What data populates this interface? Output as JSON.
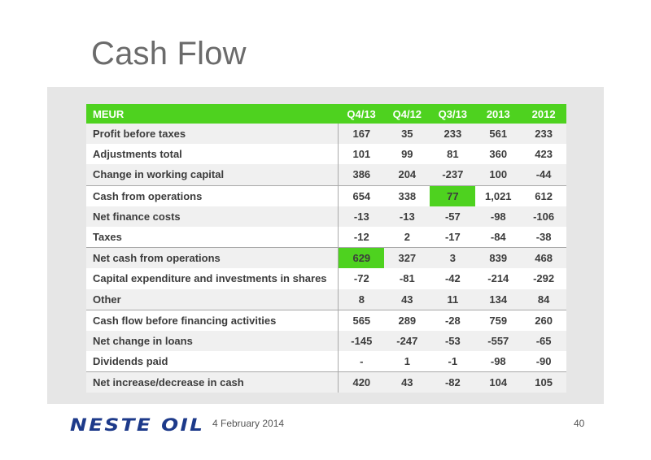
{
  "slide": {
    "title": "Cash Flow",
    "date": "4 February 2014",
    "page_number": "40",
    "logo_text": "NESTE OIL"
  },
  "table": {
    "columns": [
      "MEUR",
      "Q4/13",
      "Q4/12",
      "Q3/13",
      "2013",
      "2012"
    ],
    "rows": [
      {
        "label": "Profit before taxes",
        "values": [
          "167",
          "35",
          "233",
          "561",
          "233"
        ]
      },
      {
        "label": "Adjustments total",
        "values": [
          "101",
          "99",
          "81",
          "360",
          "423"
        ]
      },
      {
        "label": "Change in working capital",
        "values": [
          "386",
          "204",
          "-237",
          "100",
          "-44"
        ]
      },
      {
        "label": "Cash from operations",
        "values": [
          "654",
          "338",
          "77",
          "1,021",
          "612"
        ]
      },
      {
        "label": "Net finance costs",
        "values": [
          "-13",
          "-13",
          "-57",
          "-98",
          "-106"
        ]
      },
      {
        "label": "Taxes",
        "values": [
          "-12",
          "2",
          "-17",
          "-84",
          "-38"
        ]
      },
      {
        "label": "Net cash from operations",
        "values": [
          "629",
          "327",
          "3",
          "839",
          "468"
        ]
      },
      {
        "label": "Capital expenditure and investments in shares",
        "values": [
          "-72",
          "-81",
          "-42",
          "-214",
          "-292"
        ]
      },
      {
        "label": "Other",
        "values": [
          "8",
          "43",
          "11",
          "134",
          "84"
        ]
      },
      {
        "label": "Cash flow before financing activities",
        "values": [
          "565",
          "289",
          "-28",
          "759",
          "260"
        ]
      },
      {
        "label": "Net change in loans",
        "values": [
          "-145",
          "-247",
          "-53",
          "-557",
          "-65"
        ]
      },
      {
        "label": "Dividends paid",
        "values": [
          "-",
          "1",
          "-1",
          "-98",
          "-90"
        ]
      },
      {
        "label": "Net increase/decrease in cash",
        "values": [
          "420",
          "43",
          "-82",
          "104",
          "105"
        ]
      }
    ]
  },
  "colors": {
    "header_green": "#4ed21f",
    "title_gray": "#6b6b6b",
    "logo_blue": "#1d3a8a",
    "panel_gray": "#e6e6e6"
  }
}
